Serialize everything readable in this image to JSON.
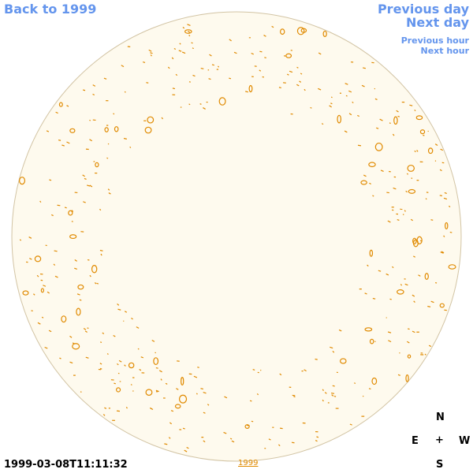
{
  "nav": {
    "back": "Back to 1999",
    "previous_day": "Previous day",
    "next_day": "Next day",
    "previous_hour": "Previous hour",
    "next_hour": "Next hour"
  },
  "compass": {
    "north": "N",
    "east": "E",
    "center": "+",
    "west": "W",
    "south": "S"
  },
  "timestamp": "1999-03-08T11:11:32",
  "year_link": "1999"
}
